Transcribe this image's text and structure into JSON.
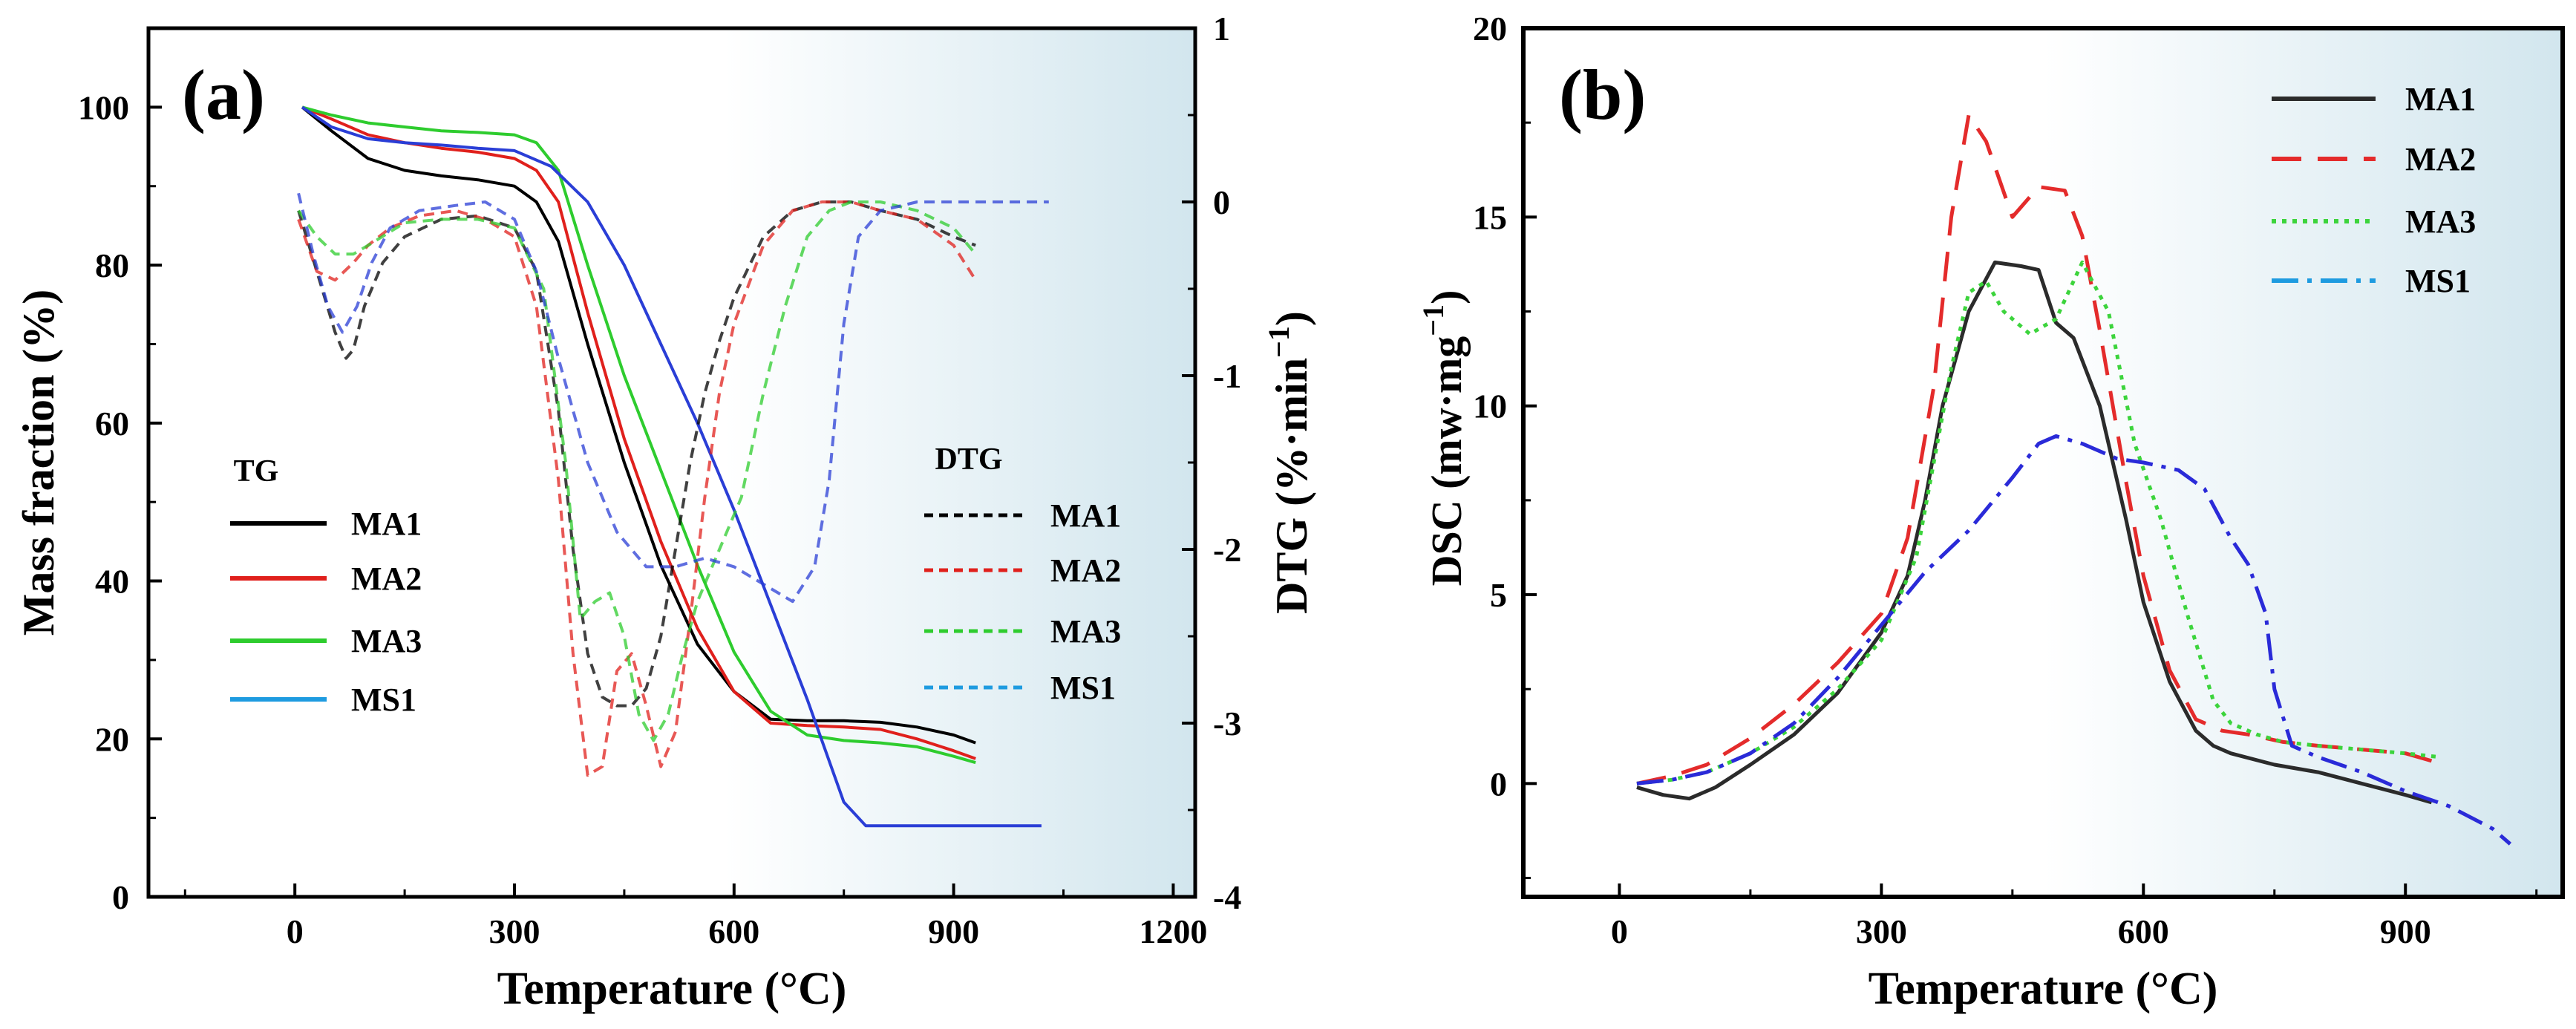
{
  "chart_data": [
    {
      "panel": "(a)",
      "type": "line",
      "xlabel": "Temperature (°C)",
      "ylabel": "Mass fraction (%)",
      "y2label": "DTG (%·min−1)",
      "y2label_parts": {
        "main": "DTG (%·min",
        "sup": "−1",
        "close": ")"
      },
      "xlim": [
        -200,
        1230
      ],
      "ylim": [
        0,
        110
      ],
      "y2lim": [
        -4,
        1
      ],
      "xticks": [
        0,
        300,
        600,
        900,
        1200
      ],
      "yticks": [
        0,
        20,
        40,
        60,
        80,
        100
      ],
      "y2ticks": [
        -4,
        -3,
        -2,
        -1,
        0,
        1
      ],
      "y2ticklabels": [
        "-4",
        "-3",
        "-2",
        "-1",
        "0",
        "1"
      ],
      "legend_tg_title": "TG",
      "legend_dtg_title": "DTG",
      "tg_series": [
        {
          "name": "MA1",
          "color": "#000000",
          "x": [
            10,
            50,
            100,
            150,
            200,
            250,
            300,
            330,
            360,
            400,
            450,
            500,
            550,
            600,
            650,
            700,
            750,
            800,
            850,
            900,
            930
          ],
          "y": [
            100,
            97,
            93.5,
            92,
            91.3,
            90.8,
            90,
            88,
            83,
            70,
            55,
            42,
            32,
            26,
            22.5,
            22.3,
            22.3,
            22.1,
            21.5,
            20.5,
            19.5
          ]
        },
        {
          "name": "MA2",
          "color": "#e0201c",
          "x": [
            10,
            50,
            100,
            150,
            200,
            250,
            300,
            330,
            360,
            400,
            450,
            500,
            550,
            600,
            650,
            700,
            750,
            800,
            850,
            900,
            930
          ],
          "y": [
            100,
            98.5,
            96.5,
            95.5,
            94.8,
            94.3,
            93.5,
            92,
            88,
            74,
            58,
            45,
            34,
            26,
            22,
            21.7,
            21.5,
            21.2,
            20,
            18.5,
            17.5
          ]
        },
        {
          "name": "MA3",
          "color": "#2ecc2e",
          "x": [
            10,
            50,
            100,
            150,
            200,
            250,
            300,
            330,
            360,
            400,
            450,
            500,
            550,
            600,
            650,
            700,
            750,
            800,
            850,
            900,
            930
          ],
          "y": [
            100,
            99,
            98,
            97.5,
            97,
            96.8,
            96.5,
            95.5,
            92,
            80,
            66,
            54,
            42,
            31,
            23.5,
            20.5,
            19.8,
            19.5,
            19,
            17.8,
            17
          ]
        },
        {
          "name": "MS1",
          "color": "#2a3ed6",
          "x": [
            10,
            50,
            100,
            150,
            200,
            250,
            300,
            350,
            400,
            450,
            500,
            550,
            600,
            650,
            700,
            750,
            780,
            800,
            850,
            900,
            950,
            1000,
            1020
          ],
          "y": [
            100,
            97.5,
            96,
            95.5,
            95.2,
            94.8,
            94.5,
            92.5,
            88,
            80,
            70,
            60,
            49,
            37,
            25,
            12,
            9,
            9,
            9,
            9,
            9,
            9,
            9
          ]
        }
      ],
      "dtg_series": [
        {
          "name": "MA1",
          "color": "#000000",
          "x": [
            5,
            30,
            55,
            70,
            80,
            95,
            120,
            150,
            200,
            250,
            300,
            330,
            360,
            380,
            400,
            420,
            440,
            460,
            480,
            500,
            520,
            540,
            560,
            580,
            600,
            640,
            680,
            720,
            760,
            800,
            850,
            900,
            930
          ],
          "y": [
            -0.05,
            -0.4,
            -0.75,
            -0.9,
            -0.85,
            -0.6,
            -0.35,
            -0.2,
            -0.1,
            -0.08,
            -0.15,
            -0.4,
            -1.2,
            -2,
            -2.6,
            -2.85,
            -2.9,
            -2.9,
            -2.8,
            -2.5,
            -2,
            -1.5,
            -1.1,
            -0.8,
            -0.55,
            -0.2,
            -0.05,
            0,
            0,
            -0.05,
            -0.1,
            -0.2,
            -0.25
          ]
        },
        {
          "name": "MA2",
          "color": "#e0201c",
          "x": [
            5,
            30,
            55,
            80,
            100,
            130,
            170,
            220,
            260,
            300,
            330,
            360,
            380,
            400,
            420,
            440,
            460,
            480,
            500,
            520,
            540,
            560,
            580,
            600,
            640,
            680,
            720,
            760,
            800,
            850,
            900,
            930
          ],
          "y": [
            -0.1,
            -0.4,
            -0.45,
            -0.35,
            -0.25,
            -0.15,
            -0.08,
            -0.05,
            -0.1,
            -0.2,
            -0.6,
            -1.6,
            -2.6,
            -3.3,
            -3.25,
            -2.7,
            -2.6,
            -2.9,
            -3.25,
            -3.05,
            -2.4,
            -1.7,
            -1.1,
            -0.7,
            -0.25,
            -0.05,
            0,
            0,
            -0.05,
            -0.1,
            -0.25,
            -0.45
          ]
        },
        {
          "name": "MA3",
          "color": "#2ecc2e",
          "x": [
            5,
            30,
            55,
            80,
            100,
            150,
            200,
            250,
            300,
            340,
            370,
            390,
            410,
            430,
            450,
            470,
            490,
            510,
            530,
            550,
            570,
            590,
            610,
            640,
            670,
            700,
            730,
            760,
            800,
            850,
            900,
            930
          ],
          "y": [
            -0.05,
            -0.2,
            -0.3,
            -0.3,
            -0.25,
            -0.12,
            -0.1,
            -0.1,
            -0.15,
            -0.5,
            -1.5,
            -2.4,
            -2.3,
            -2.25,
            -2.5,
            -2.95,
            -3.1,
            -2.95,
            -2.6,
            -2.3,
            -2.1,
            -1.9,
            -1.7,
            -1.1,
            -0.6,
            -0.2,
            -0.05,
            0,
            0,
            -0.05,
            -0.15,
            -0.3
          ]
        },
        {
          "name": "MS1",
          "color": "#2a3ed6",
          "x": [
            5,
            25,
            45,
            65,
            85,
            105,
            130,
            170,
            220,
            260,
            300,
            330,
            360,
            400,
            440,
            480,
            520,
            560,
            600,
            640,
            680,
            710,
            730,
            750,
            770,
            800,
            850,
            900,
            950,
            1000,
            1030
          ],
          "y": [
            0.05,
            -0.3,
            -0.6,
            -0.75,
            -0.6,
            -0.35,
            -0.15,
            -0.05,
            -0.02,
            0,
            -0.1,
            -0.4,
            -0.9,
            -1.5,
            -1.9,
            -2.1,
            -2.1,
            -2.05,
            -2.1,
            -2.2,
            -2.3,
            -2.1,
            -1.6,
            -0.7,
            -0.2,
            -0.05,
            0,
            0,
            0,
            0,
            0
          ]
        }
      ]
    },
    {
      "panel": "(b)",
      "type": "line",
      "xlabel": "Temperature (°C)",
      "ylabel": "DSC (mw·mg−1)",
      "ylabel_parts": {
        "main": "DSC (mw·mg",
        "sup": "−1",
        "close": ")"
      },
      "xlim": [
        -110,
        1080
      ],
      "ylim": [
        -3,
        20
      ],
      "xticks": [
        0,
        300,
        600,
        900
      ],
      "yticks": [
        0,
        5,
        10,
        15,
        20
      ],
      "series": [
        {
          "name": "MA1",
          "color": "#2b2b2b",
          "dash": "solid",
          "x": [
            20,
            50,
            80,
            110,
            150,
            200,
            250,
            300,
            330,
            350,
            370,
            400,
            430,
            460,
            480,
            500,
            520,
            550,
            580,
            600,
            630,
            660,
            680,
            700,
            750,
            800,
            850,
            900,
            930
          ],
          "y": [
            -0.1,
            -0.3,
            -0.4,
            -0.1,
            0.5,
            1.3,
            2.4,
            4,
            5.5,
            7.5,
            10,
            12.5,
            13.8,
            13.7,
            13.6,
            12.2,
            11.8,
            10,
            7,
            4.8,
            2.7,
            1.4,
            1,
            0.8,
            0.5,
            0.3,
            0,
            -0.3,
            -0.5
          ]
        },
        {
          "name": "MA2",
          "color": "#e42b2b",
          "dash": "long",
          "x": [
            20,
            60,
            100,
            150,
            200,
            250,
            300,
            330,
            360,
            380,
            400,
            420,
            450,
            480,
            510,
            530,
            550,
            580,
            600,
            630,
            660,
            690,
            720,
            760,
            800,
            850,
            900,
            930
          ],
          "y": [
            0,
            0.2,
            0.5,
            1.2,
            2.1,
            3.2,
            4.5,
            6.5,
            10.5,
            15,
            17.7,
            17,
            15,
            15.8,
            15.7,
            14.5,
            12,
            8,
            5.5,
            3,
            1.7,
            1.4,
            1.3,
            1.1,
            1,
            0.9,
            0.8,
            0.6
          ]
        },
        {
          "name": "MA3",
          "color": "#3cd43c",
          "dash": "dot",
          "x": [
            20,
            60,
            100,
            150,
            200,
            250,
            300,
            340,
            360,
            380,
            400,
            420,
            440,
            470,
            500,
            530,
            560,
            590,
            620,
            650,
            680,
            700,
            730,
            760,
            800,
            850,
            900,
            940
          ],
          "y": [
            0,
            0.1,
            0.3,
            0.8,
            1.5,
            2.5,
            3.8,
            6,
            8.5,
            11,
            13,
            13.3,
            12.5,
            11.9,
            12.3,
            13.8,
            12.5,
            9,
            7,
            4.5,
            2.2,
            1.6,
            1.3,
            1.1,
            1,
            0.9,
            0.8,
            0.7
          ]
        },
        {
          "name": "MS1",
          "color": "#2a2ad8",
          "dash": "dashdot",
          "x": [
            20,
            60,
            100,
            150,
            200,
            250,
            300,
            350,
            400,
            450,
            480,
            500,
            530,
            570,
            600,
            640,
            670,
            700,
            720,
            740,
            750,
            770,
            800,
            850,
            900,
            950,
            1000,
            1020
          ],
          "y": [
            0,
            0.1,
            0.3,
            0.8,
            1.6,
            2.8,
            4.2,
            5.6,
            6.7,
            8.1,
            9,
            9.2,
            9,
            8.6,
            8.5,
            8.3,
            7.8,
            6.5,
            5.8,
            4.5,
            2.5,
            1,
            0.7,
            0.3,
            -0.2,
            -0.6,
            -1.2,
            -1.6
          ]
        }
      ],
      "legend": [
        "MA1",
        "MA2",
        "MA3",
        "MS1"
      ]
    }
  ]
}
